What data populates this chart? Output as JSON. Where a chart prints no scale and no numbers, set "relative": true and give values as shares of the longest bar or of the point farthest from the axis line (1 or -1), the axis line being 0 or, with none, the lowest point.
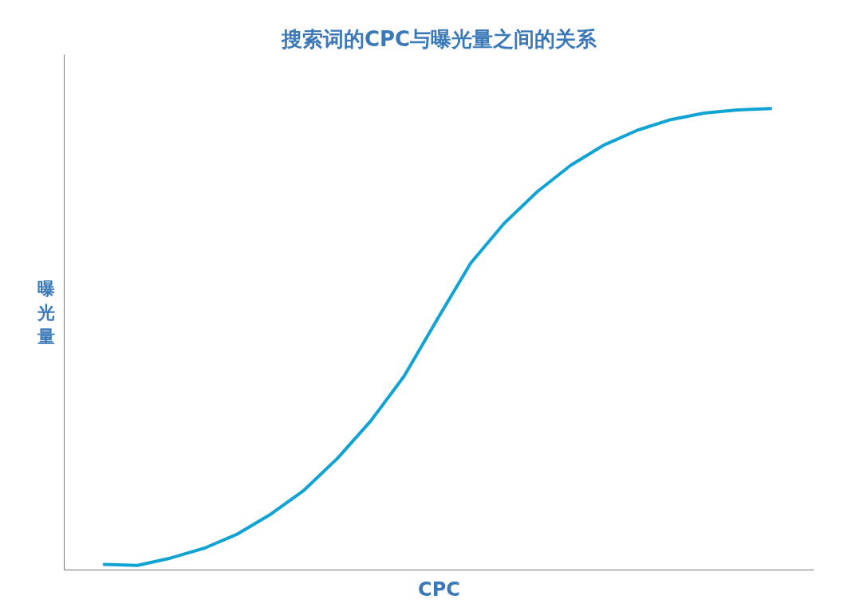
{
  "chart_data": {
    "type": "line",
    "title": "搜索词的CPC与曝光量之间的关系",
    "xlabel": "CPC",
    "ylabel": "曝光量",
    "relative": true,
    "categories": [
      null,
      null,
      null,
      null,
      null,
      null,
      null,
      null,
      null,
      null,
      null,
      null,
      null,
      null,
      null,
      null,
      null,
      null,
      null,
      null,
      null
    ],
    "series": [
      {
        "color": "#11a3d4",
        "values": [
          0.012,
          0.01,
          0.026,
          0.047,
          0.078,
          0.121,
          0.173,
          0.242,
          0.323,
          0.42,
          0.544,
          0.665,
          0.751,
          0.82,
          0.877,
          0.921,
          0.953,
          0.976,
          0.99,
          0.997,
          1.0
        ]
      }
    ]
  }
}
